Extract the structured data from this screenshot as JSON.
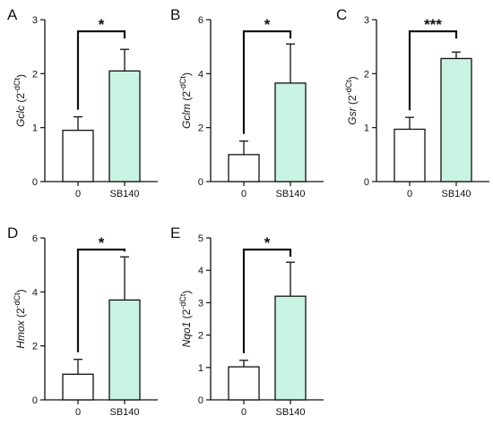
{
  "colors": {
    "control_fill": "#ffffff",
    "treated_fill": "#c9f3e3",
    "stroke": "#111111"
  },
  "chart_data": [
    {
      "type": "bar",
      "panel": "A",
      "categories": [
        "0",
        "SB140"
      ],
      "values": [
        0.95,
        2.05
      ],
      "errors": [
        0.25,
        0.4
      ],
      "ylim": [
        0,
        3
      ],
      "yticks": [
        "0",
        "1",
        "2",
        "3"
      ],
      "ylabel": {
        "gene": "Gclc",
        "unit": "(2",
        "exp": "-dCt",
        "close": ")"
      },
      "significance": "*"
    },
    {
      "type": "bar",
      "panel": "B",
      "categories": [
        "0",
        "SB140"
      ],
      "values": [
        1.0,
        3.65
      ],
      "errors": [
        0.5,
        1.45
      ],
      "ylim": [
        0,
        6
      ],
      "yticks": [
        "0",
        "2",
        "4",
        "6"
      ],
      "ylabel": {
        "gene": "Gclm",
        "unit": "(2",
        "exp": "-dCt",
        "close": ")"
      },
      "significance": "*"
    },
    {
      "type": "bar",
      "panel": "C",
      "categories": [
        "0",
        "SB140"
      ],
      "values": [
        0.97,
        2.28
      ],
      "errors": [
        0.22,
        0.12
      ],
      "ylim": [
        0,
        3
      ],
      "yticks": [
        "0",
        "1",
        "2",
        "3"
      ],
      "ylabel": {
        "gene": "Gsr",
        "unit": "(2",
        "exp": "-dCt",
        "close": ")"
      },
      "significance": "***"
    },
    {
      "type": "bar",
      "panel": "D",
      "categories": [
        "0",
        "SB140"
      ],
      "values": [
        0.95,
        3.7
      ],
      "errors": [
        0.55,
        1.6
      ],
      "ylim": [
        0,
        6
      ],
      "yticks": [
        "0",
        "2",
        "4",
        "6"
      ],
      "ylabel": {
        "gene": "Hmox",
        "unit": "(2",
        "exp": "-dCt",
        "close": ")"
      },
      "significance": "*"
    },
    {
      "type": "bar",
      "panel": "E",
      "categories": [
        "0",
        "SB140"
      ],
      "values": [
        1.02,
        3.2
      ],
      "errors": [
        0.2,
        1.05
      ],
      "ylim": [
        0,
        5
      ],
      "yticks": [
        "0",
        "1",
        "2",
        "3",
        "4",
        "5"
      ],
      "ylabel": {
        "gene": "Nqo1",
        "unit": "(2",
        "exp": "-dCt",
        "close": ")"
      },
      "significance": "*"
    }
  ]
}
